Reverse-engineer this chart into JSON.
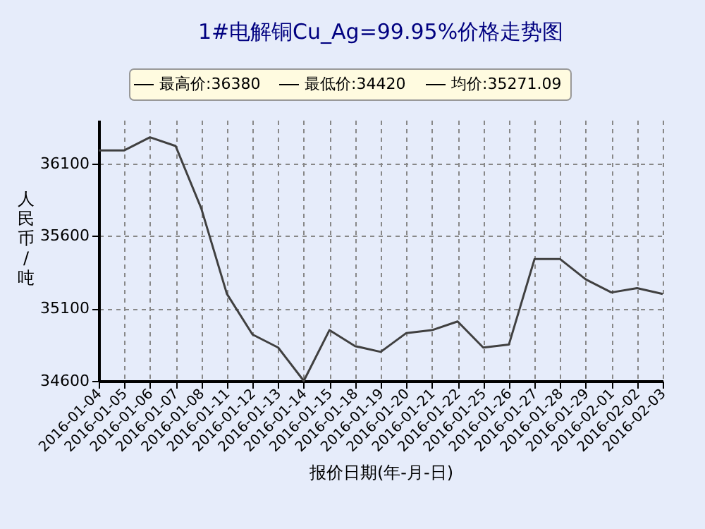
{
  "chart_data": {
    "type": "line",
    "title": "1#电解铜Cu_Ag=99.95%价格走势图",
    "xlabel": "报价日期(年-月-日)",
    "ylabel": "人民币/吨",
    "annotations": [
      "最高价:36380",
      "最低价:34420",
      "均价:35271.09"
    ],
    "categories": [
      "2016-01-04",
      "2016-01-05",
      "2016-01-06",
      "2016-01-07",
      "2016-01-08",
      "2016-01-11",
      "2016-01-12",
      "2016-01-13",
      "2016-01-14",
      "2016-01-15",
      "2016-01-18",
      "2016-01-19",
      "2016-01-20",
      "2016-01-21",
      "2016-01-22",
      "2016-01-25",
      "2016-01-26",
      "2016-01-27",
      "2016-01-28",
      "2016-01-29",
      "2016-02-01",
      "2016-02-02",
      "2016-02-03"
    ],
    "series": [
      {
        "color": "#404040",
        "values": [
          36190,
          36190,
          36280,
          36220,
          35790,
          35200,
          34920,
          34830,
          34600,
          34950,
          34840,
          34800,
          34930,
          34950,
          35010,
          34830,
          34850,
          35440,
          35440,
          35300,
          35210,
          35240,
          35200
        ]
      }
    ],
    "ylim": [
      34600,
      36400
    ],
    "yticks": [
      34600,
      35100,
      35600,
      36100
    ],
    "grid": true,
    "marker": "none"
  }
}
